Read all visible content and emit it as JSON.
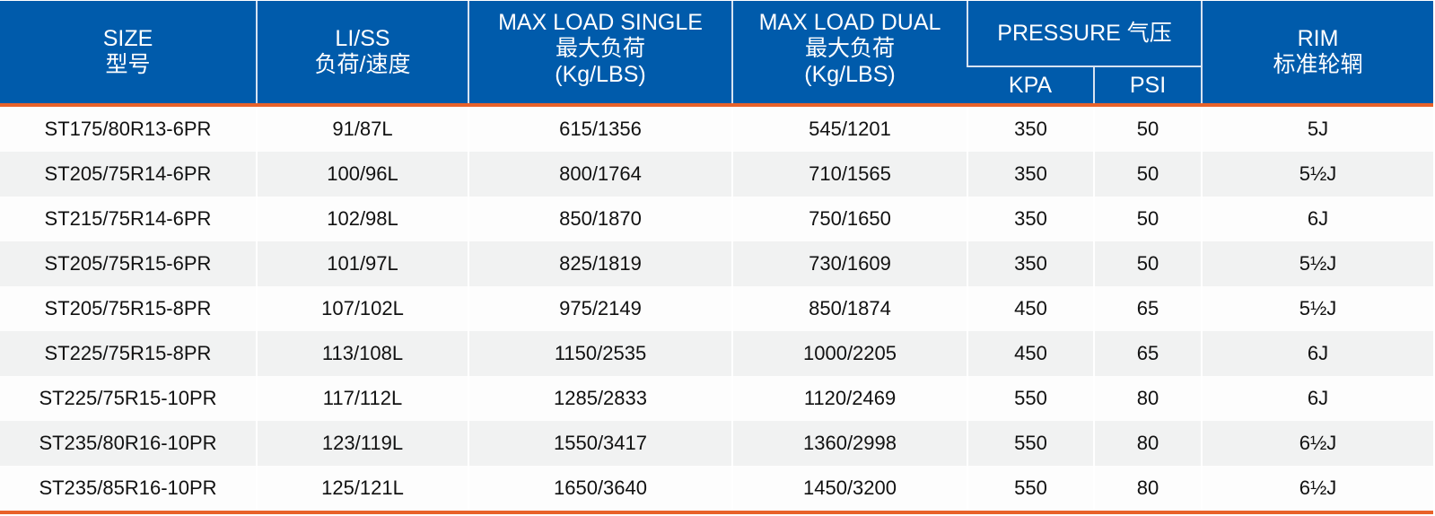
{
  "header": {
    "size": [
      "SIZE",
      "型号"
    ],
    "liss": [
      "LI/SS",
      "负荷/速度"
    ],
    "max_single": [
      "MAX LOAD SINGLE",
      "最大负荷",
      "(Kg/LBS)"
    ],
    "max_dual": [
      "MAX LOAD DUAL",
      "最大负荷",
      "(Kg/LBS)"
    ],
    "pressure": "PRESSURE 气压",
    "kpa": "KPA",
    "psi": "PSI",
    "rim": [
      "RIM",
      "标准轮辋"
    ]
  },
  "colors": {
    "header_bg": "#005bab",
    "accent_line": "#e8622a",
    "row_alt": "#f1f2f2"
  },
  "rows": [
    [
      "ST175/80R13-6PR",
      "91/87L",
      "615/1356",
      "545/1201",
      "350",
      "50",
      "5J"
    ],
    [
      "ST205/75R14-6PR",
      "100/96L",
      "800/1764",
      "710/1565",
      "350",
      "50",
      "5½J"
    ],
    [
      "ST215/75R14-6PR",
      "102/98L",
      "850/1870",
      "750/1650",
      "350",
      "50",
      "6J"
    ],
    [
      "ST205/75R15-6PR",
      "101/97L",
      "825/1819",
      "730/1609",
      "350",
      "50",
      "5½J"
    ],
    [
      "ST205/75R15-8PR",
      "107/102L",
      "975/2149",
      "850/1874",
      "450",
      "65",
      "5½J"
    ],
    [
      "ST225/75R15-8PR",
      "113/108L",
      "1150/2535",
      "1000/2205",
      "450",
      "65",
      "6J"
    ],
    [
      "ST225/75R15-10PR",
      "117/112L",
      "1285/2833",
      "1120/2469",
      "550",
      "80",
      "6J"
    ],
    [
      "ST235/80R16-10PR",
      "123/119L",
      "1550/3417",
      "1360/2998",
      "550",
      "80",
      "6½J"
    ],
    [
      "ST235/85R16-10PR",
      "125/121L",
      "1650/3640",
      "1450/3200",
      "550",
      "80",
      "6½J"
    ]
  ]
}
